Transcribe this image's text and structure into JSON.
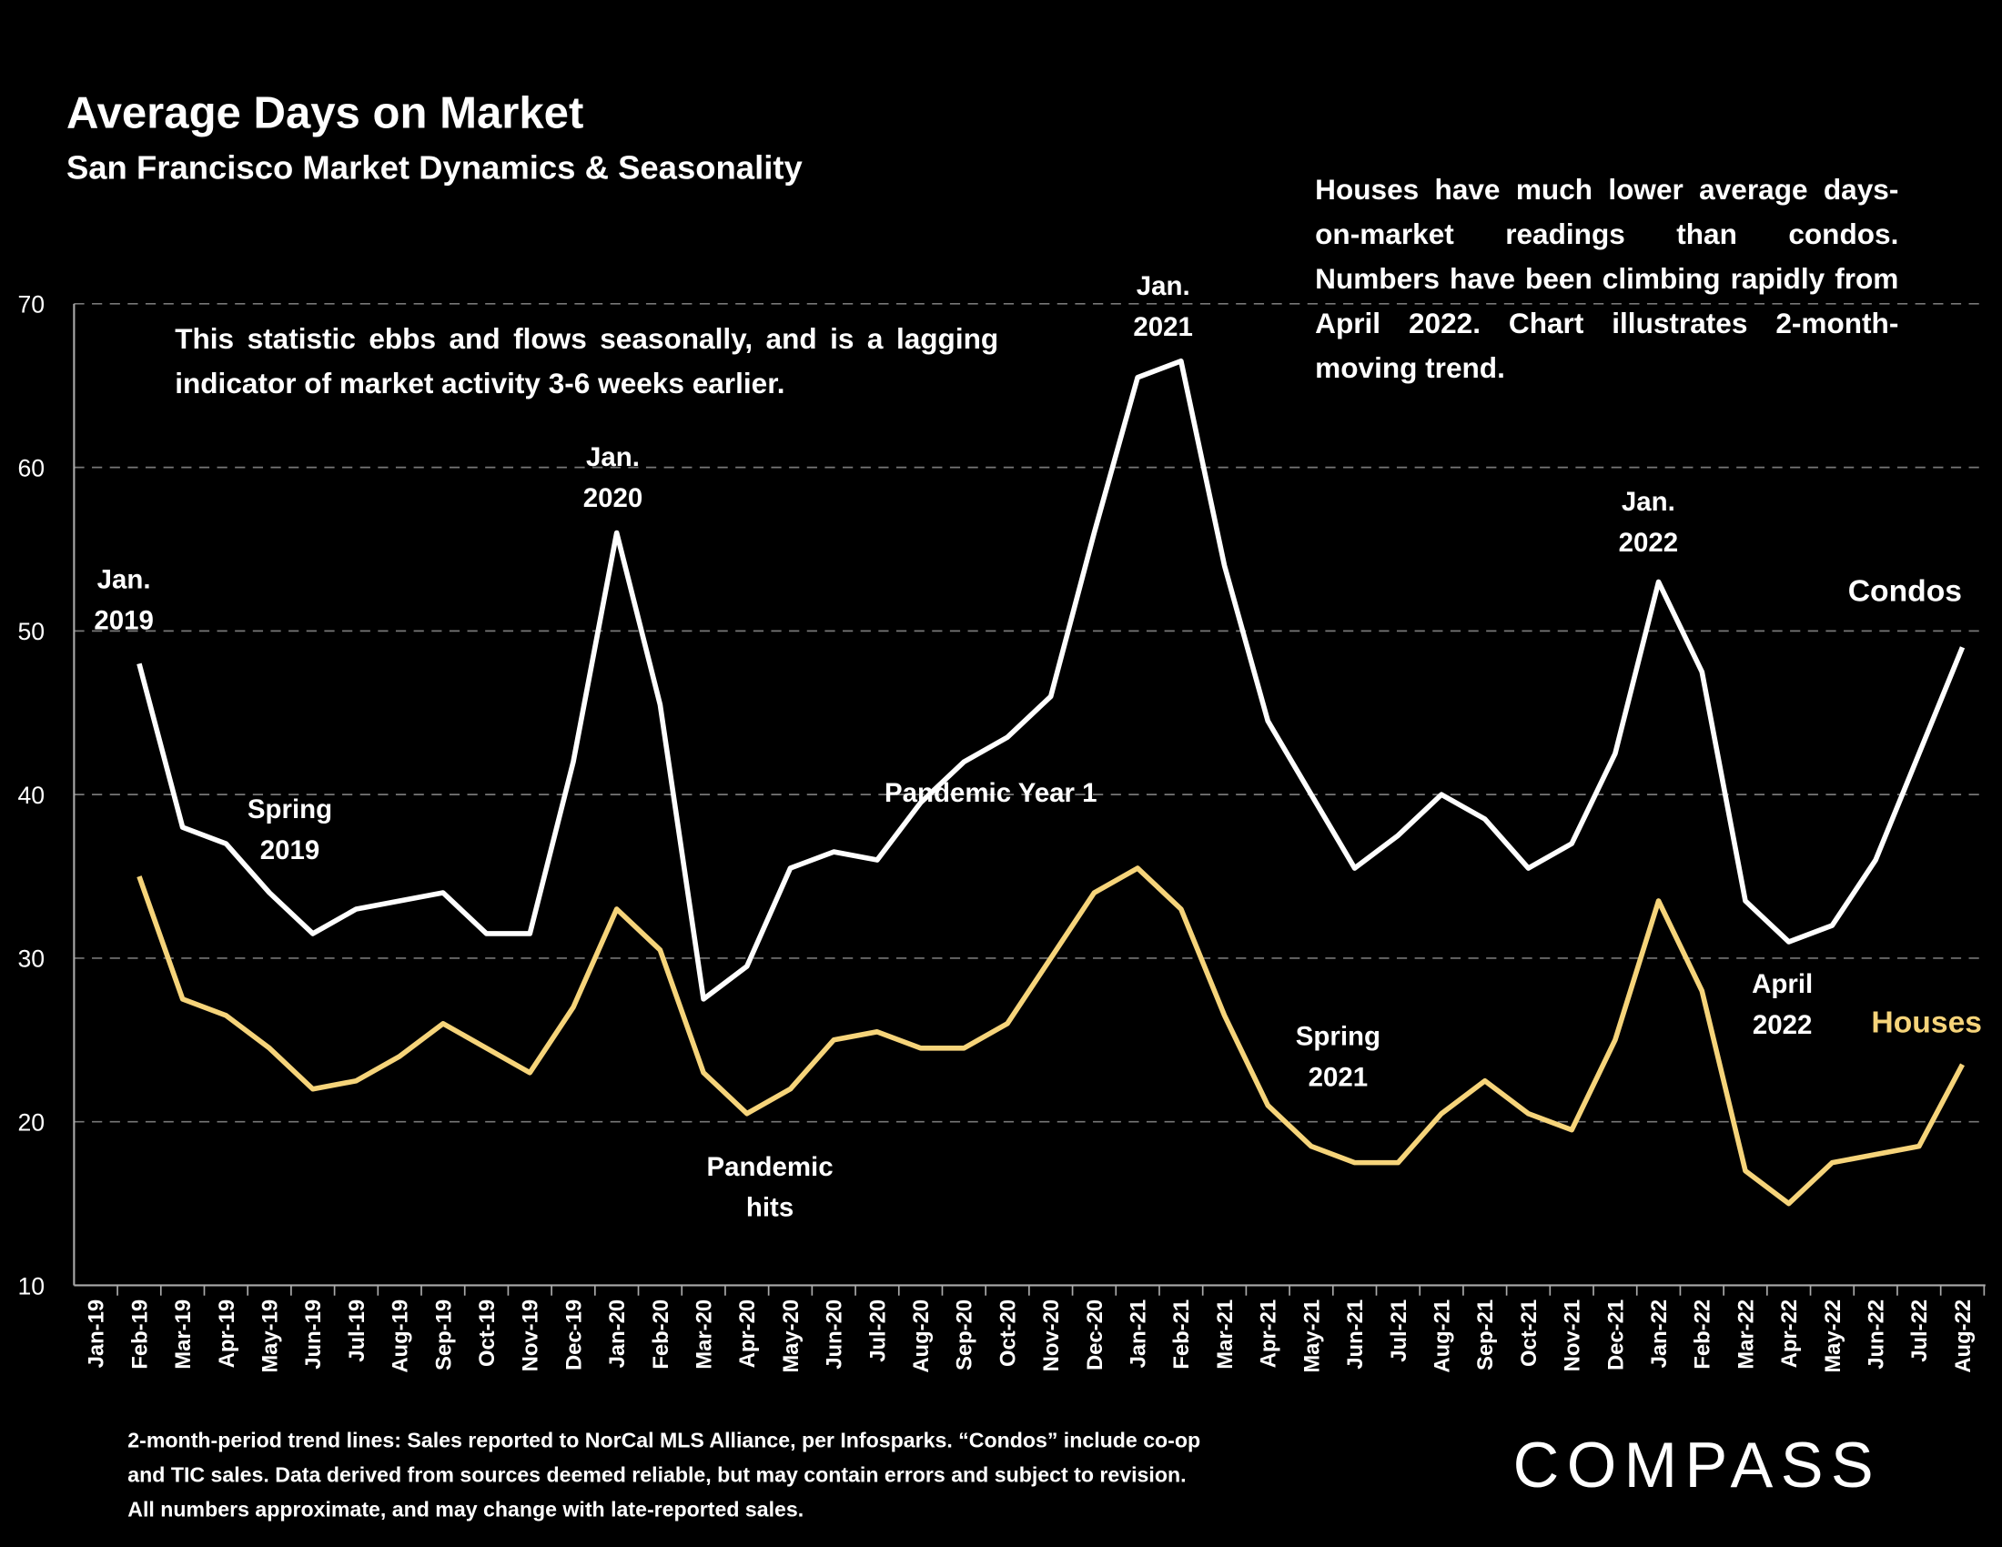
{
  "chart_data": {
    "type": "line",
    "title": "Average Days on Market",
    "subtitle": "San Francisco Market Dynamics & Seasonality",
    "categories": [
      "Jan-19",
      "Feb-19",
      "Mar-19",
      "Apr-19",
      "May-19",
      "Jun-19",
      "Jul-19",
      "Aug-19",
      "Sep-19",
      "Oct-19",
      "Nov-19",
      "Dec-19",
      "Jan-20",
      "Feb-20",
      "Mar-20",
      "Apr-20",
      "May-20",
      "Jun-20",
      "Jul-20",
      "Aug-20",
      "Sep-20",
      "Oct-20",
      "Nov-20",
      "Dec-20",
      "Jan-21",
      "Feb-21",
      "Mar-21",
      "Apr-21",
      "May-21",
      "Jun-21",
      "Jul-21",
      "Aug-21",
      "Sep-21",
      "Oct-21",
      "Nov-21",
      "Dec-21",
      "Jan-22",
      "Feb-22",
      "Mar-22",
      "Apr-22",
      "May-22",
      "Jun-22",
      "Jul-22",
      "Aug-22"
    ],
    "series": [
      {
        "name": "Condos",
        "color": "#ffffff",
        "values": [
          null,
          48,
          38,
          37,
          34,
          31.5,
          33,
          33.5,
          34,
          31.5,
          31.5,
          42,
          56,
          45.5,
          27.5,
          29.5,
          35.5,
          36.5,
          36,
          39.5,
          42,
          43.5,
          46,
          56,
          65.5,
          66.5,
          54,
          44.5,
          40,
          35.5,
          37.5,
          40,
          38.5,
          35.5,
          37,
          42.5,
          53,
          47.5,
          33.5,
          31,
          32,
          36,
          42.5,
          49
        ]
      },
      {
        "name": "Houses",
        "color": "#f6d47a",
        "values": [
          null,
          35,
          27.5,
          26.5,
          24.5,
          22,
          22.5,
          24,
          26,
          24.5,
          23,
          27,
          33,
          30.5,
          23,
          20.5,
          22,
          25,
          25.5,
          24.5,
          24.5,
          26,
          30,
          34,
          35.5,
          33,
          26.5,
          21,
          18.5,
          17.5,
          17.5,
          20.5,
          22.5,
          20.5,
          19.5,
          25,
          33.5,
          28,
          17,
          15,
          17.5,
          18,
          18.5,
          23.5
        ]
      }
    ],
    "ylim": [
      10,
      70
    ],
    "yticks": [
      10,
      20,
      30,
      40,
      50,
      60,
      70
    ],
    "grid": true,
    "annotations": [
      {
        "lines": [
          "Jan.",
          "2019"
        ]
      },
      {
        "lines": [
          "Spring",
          "2019"
        ]
      },
      {
        "lines": [
          "Jan.",
          "2020"
        ]
      },
      {
        "lines": [
          "Pandemic",
          "hits"
        ]
      },
      {
        "lines": [
          "Pandemic Year 1"
        ]
      },
      {
        "lines": [
          "Jan.",
          "2021"
        ]
      },
      {
        "lines": [
          "Spring",
          "2021"
        ]
      },
      {
        "lines": [
          "Jan.",
          "2022"
        ]
      },
      {
        "lines": [
          "April",
          "2022"
        ]
      }
    ],
    "notes": [
      "This statistic ebbs and flows seasonally, and is a lagging indicator of market activity 3-6 weeks earlier.",
      "Houses have much lower average days-on-market readings than condos. Numbers have been climbing rapidly from April 2022. Chart illustrates 2-month-moving trend."
    ],
    "footnote": [
      "2-month-period trend lines: Sales reported to NorCal MLS Alliance, per Infosparks. “Condos” include co-op",
      "and TIC sales. Data derived from sources deemed reliable, but may contain errors and subject to revision.",
      "All numbers approximate, and may change with late-reported sales."
    ],
    "brand": "COMPASS"
  }
}
